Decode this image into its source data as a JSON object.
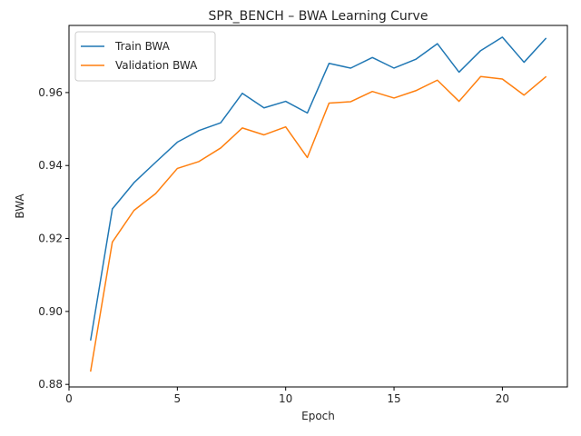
{
  "chart_data": {
    "type": "line",
    "title": "SPR_BENCH – BWA Learning Curve",
    "xlabel": "Epoch",
    "ylabel": "BWA",
    "xlim": [
      0,
      23
    ],
    "ylim": [
      0.8793,
      0.9784
    ],
    "xticks": [
      0,
      5,
      10,
      15,
      20
    ],
    "yticks": [
      0.88,
      0.9,
      0.92,
      0.94,
      0.96
    ],
    "ytick_labels": [
      "0.88",
      "0.90",
      "0.92",
      "0.94",
      "0.96"
    ],
    "legend_position": "upper-left",
    "grid": false,
    "x": [
      1,
      2,
      3,
      4,
      5,
      6,
      7,
      8,
      9,
      10,
      11,
      12,
      13,
      14,
      15,
      16,
      17,
      18,
      19,
      20,
      21,
      22
    ],
    "series": [
      {
        "name": "Train BWA",
        "color": "#1f77b4",
        "values": [
          0.8922,
          0.9281,
          0.9353,
          0.9409,
          0.9464,
          0.9496,
          0.9517,
          0.9598,
          0.9558,
          0.9576,
          0.9544,
          0.968,
          0.9667,
          0.9696,
          0.9667,
          0.9691,
          0.9734,
          0.9656,
          0.9715,
          0.9752,
          0.9683,
          0.9748
        ]
      },
      {
        "name": "Validation BWA",
        "color": "#ff7f0e",
        "values": [
          0.8837,
          0.919,
          0.9277,
          0.9323,
          0.9392,
          0.9411,
          0.9448,
          0.9503,
          0.9484,
          0.9506,
          0.9422,
          0.9571,
          0.9575,
          0.9603,
          0.9585,
          0.9605,
          0.9634,
          0.9576,
          0.9644,
          0.9637,
          0.9593,
          0.9643
        ]
      }
    ]
  }
}
